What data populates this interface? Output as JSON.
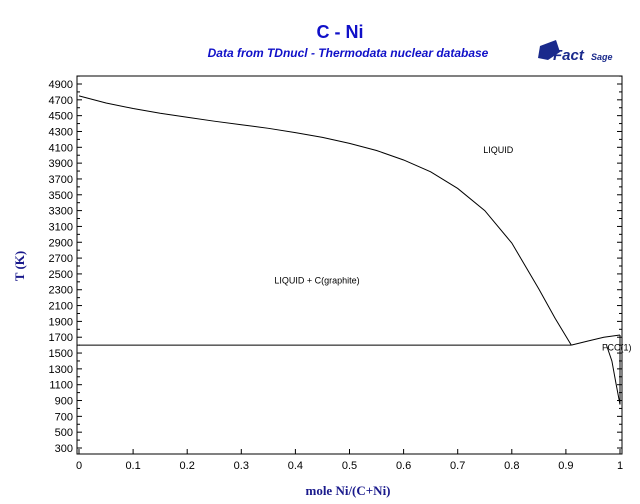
{
  "chart_data": {
    "type": "line",
    "title": "C - Ni",
    "subtitle": "Data from TDnucl - Thermodata nuclear database",
    "xlabel": "mole Ni/(C+Ni)",
    "ylabel": "T (K)",
    "xlim": [
      0,
      1
    ],
    "ylim": [
      300,
      5000
    ],
    "x_ticks": [
      "0",
      "0.1",
      "0.2",
      "0.3",
      "0.4",
      "0.5",
      "0.6",
      "0.7",
      "0.8",
      "0.9",
      "1"
    ],
    "y_ticks": [
      "300",
      "500",
      "700",
      "900",
      "1100",
      "1300",
      "1500",
      "1700",
      "1900",
      "2100",
      "2300",
      "2500",
      "2700",
      "2900",
      "3100",
      "3300",
      "3500",
      "3700",
      "3900",
      "4100",
      "4300",
      "4500",
      "4700",
      "4900"
    ],
    "grid": false,
    "series": [
      {
        "x": [
          0,
          0.05,
          0.1,
          0.15,
          0.2,
          0.25,
          0.3,
          0.35,
          0.4,
          0.45,
          0.5,
          0.55,
          0.6,
          0.65,
          0.7,
          0.75,
          0.8,
          0.85,
          0.88,
          0.91
        ],
        "y": [
          4750,
          4660,
          4590,
          4530,
          4480,
          4430,
          4385,
          4340,
          4285,
          4225,
          4150,
          4060,
          3940,
          3790,
          3580,
          3300,
          2890,
          2310,
          1940,
          1600
        ]
      },
      {
        "x": [
          0,
          0.91
        ],
        "y": [
          1600,
          1600
        ]
      },
      {
        "x": [
          0.91,
          0.94,
          0.97,
          1.0
        ],
        "y": [
          1600,
          1650,
          1700,
          1728
        ]
      },
      {
        "x": [
          0.975,
          0.985,
          0.993,
          1.0
        ],
        "y": [
          1600,
          1400,
          1100,
          850
        ]
      },
      {
        "x": [
          1.0,
          1.0
        ],
        "y": [
          1728,
          850
        ]
      }
    ],
    "annotations": [
      {
        "text": "LIQUID",
        "x": 0.775,
        "y": 4030
      },
      {
        "text": "LIQUID + C(graphite)",
        "x": 0.44,
        "y": 2380
      },
      {
        "text": "FCC(1)",
        "x": 0.994,
        "y": 1530
      }
    ]
  },
  "logo": {
    "text_a": "Fact",
    "text_b": "Sage"
  }
}
